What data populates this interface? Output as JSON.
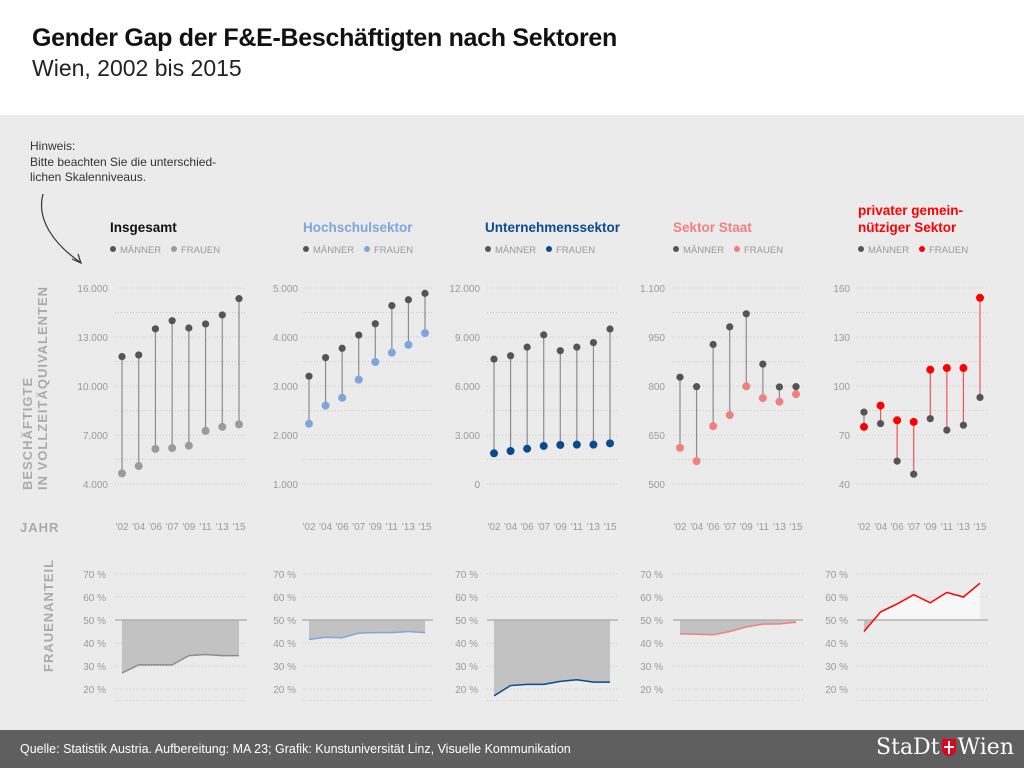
{
  "header": {
    "title": "Gender Gap der F&E-Beschäftigten nach Sektoren",
    "subtitle": "Wien, 2002 bis 2015"
  },
  "note": {
    "label": "Hinweis:",
    "lines": [
      "Bitte beachten Sie die unterschied-",
      "lichen Skalenniveaus."
    ]
  },
  "axis_labels": {
    "y_line1": "BESCHÄFTIGTE",
    "y_line2": "IN VOLLZEITÄQUIVALENTEN",
    "year": "JAHR",
    "share": "FRAUENANTEIL"
  },
  "footer": {
    "source": "Quelle: Statistik Austria. Aufbereitung: MA 23; Grafik: Kunstuniversität Linz, Visuelle Kommunikation",
    "logo": "StaDt Wien"
  },
  "colors": {
    "men": "#555555",
    "stem": "#8c8c8c",
    "area_below": "#c2c2c2",
    "area_above": "#f7f7f7",
    "grid": "#bdbdbd",
    "tick": "#9a9a9a"
  },
  "chart_data": [
    {
      "type": "dumbbell",
      "title_lines": [
        "Insgesamt"
      ],
      "title_color": "#111111",
      "women_color": "#9b9b9b",
      "categories": [
        "'02",
        "'04",
        "'06",
        "'07",
        "'09",
        "'11",
        "'13",
        "'15"
      ],
      "ylim": [
        4000,
        16000
      ],
      "yticks": [
        "16.000",
        "13.000",
        "10.000",
        "7.000",
        "4.000"
      ],
      "series": [
        {
          "name": "MÄNNER",
          "values": [
            11800,
            11900,
            13500,
            14000,
            13550,
            13800,
            14350,
            15350
          ]
        },
        {
          "name": "FRAUEN",
          "values": [
            4650,
            5100,
            6150,
            6200,
            6350,
            7250,
            7500,
            7650
          ]
        }
      ],
      "women_share": {
        "type": "area",
        "values": [
          27,
          30.5,
          30.5,
          30.5,
          34.5,
          35,
          34.5,
          34.5
        ],
        "yticks": [
          "70 %",
          "60 %",
          "50 %",
          "40 %",
          "30 %",
          "20 %"
        ]
      }
    },
    {
      "type": "dumbbell",
      "title_lines": [
        "Hochschulsektor"
      ],
      "title_color": "#7ea6dd",
      "women_color": "#7ea6dd",
      "categories": [
        "'02",
        "'04",
        "'06",
        "'07",
        "'09",
        "'11",
        "'13",
        "'15"
      ],
      "ylim": [
        1000,
        5000
      ],
      "yticks": [
        "5.000",
        "4.000",
        "3.000",
        "2.000",
        "1.000"
      ],
      "series": [
        {
          "name": "MÄNNER",
          "values": [
            3200,
            3580,
            3770,
            4040,
            4270,
            4640,
            4760,
            4890
          ]
        },
        {
          "name": "FRAUEN",
          "values": [
            2230,
            2600,
            2760,
            3130,
            3490,
            3680,
            3840,
            4080
          ]
        }
      ],
      "women_share": {
        "type": "area",
        "values": [
          41.5,
          42.5,
          42.3,
          44.3,
          44.5,
          44.5,
          45,
          44.5
        ],
        "yticks": [
          "70 %",
          "60 %",
          "50 %",
          "40 %",
          "30 %",
          "20 %"
        ]
      }
    },
    {
      "type": "dumbbell",
      "title_lines": [
        "Unternehmenssektor"
      ],
      "title_color": "#0a4a8f",
      "women_color": "#0a4a8f",
      "categories": [
        "'02",
        "'04",
        "'06",
        "'07",
        "'09",
        "'11",
        "'13",
        "'15"
      ],
      "ylim": [
        0,
        12000
      ],
      "yticks": [
        "12.000",
        "9.000",
        "6.000",
        "3.000",
        "0"
      ],
      "series": [
        {
          "name": "MÄNNER",
          "values": [
            7650,
            7850,
            8380,
            9130,
            8160,
            8380,
            8660,
            9490
          ]
        },
        {
          "name": "FRAUEN",
          "values": [
            1880,
            2020,
            2160,
            2330,
            2390,
            2410,
            2410,
            2490
          ]
        }
      ],
      "women_share": {
        "type": "area",
        "values": [
          17,
          21.5,
          22,
          22,
          23.3,
          24,
          23,
          23
        ],
        "yticks": [
          "70 %",
          "60 %",
          "50 %",
          "40 %",
          "30 %",
          "20 %"
        ]
      }
    },
    {
      "type": "dumbbell",
      "title_lines": [
        "Sektor Staat"
      ],
      "title_color": "#f07f7f",
      "women_color": "#f07f7f",
      "categories": [
        "'02",
        "'04",
        "'06",
        "'07",
        "'09",
        "'11",
        "'13",
        "'15"
      ],
      "ylim": [
        500,
        1100
      ],
      "yticks": [
        "1.100",
        "950",
        "800",
        "650",
        "500"
      ],
      "series": [
        {
          "name": "MÄNNER",
          "values": [
            827,
            798,
            927,
            981,
            1021,
            867,
            797,
            798
          ]
        },
        {
          "name": "FRAUEN",
          "values": [
            611,
            570,
            677,
            711,
            799,
            763,
            752,
            775
          ]
        }
      ],
      "women_share": {
        "type": "area",
        "values": [
          44,
          43.8,
          43.6,
          45,
          47,
          48.2,
          48.3,
          49
        ],
        "yticks": [
          "70 %",
          "60 %",
          "50 %",
          "40 %",
          "30 %",
          "20 %"
        ]
      }
    },
    {
      "type": "dumbbell",
      "title_lines": [
        "privater gemein-",
        "nütziger Sektor"
      ],
      "title_color": "#ff0000",
      "women_color": "#ff0000",
      "categories": [
        "'02",
        "'04",
        "'06",
        "'07",
        "'09",
        "'11",
        "'13",
        "'15"
      ],
      "ylim": [
        40,
        160
      ],
      "yticks": [
        "160",
        "130",
        "100",
        "70",
        "40"
      ],
      "series": [
        {
          "name": "MÄNNER",
          "values": [
            84,
            77,
            54,
            46,
            80,
            73,
            76,
            93
          ]
        },
        {
          "name": "FRAUEN",
          "values": [
            75,
            88,
            79,
            78,
            110,
            111,
            111,
            154
          ]
        }
      ],
      "women_share": {
        "type": "area",
        "values": [
          45,
          53.5,
          57,
          61,
          57.5,
          62,
          60,
          66
        ],
        "yticks": [
          "70 %",
          "60 %",
          "50 %",
          "40 %",
          "30 %",
          "20 %"
        ]
      }
    }
  ]
}
